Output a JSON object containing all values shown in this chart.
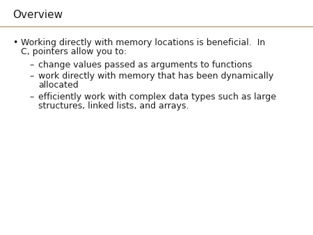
{
  "title": "Overview",
  "title_fontsize": 11,
  "title_color": "#1a1a1a",
  "title_font": "DejaVu Sans",
  "separator_color": "#B8966E",
  "bg_color": "#ffffff",
  "text_color": "#1a1a1a",
  "bullet_main_line1": "Working directly with memory locations is beneficial.  In",
  "bullet_main_line2": "C, pointers allow you to:",
  "sub_bullets": [
    "change values passed as arguments to functions",
    "work directly with memory that has been dynamically\nallocated",
    "efficiently work with complex data types such as large\nstructures, linked lists, and arrays."
  ],
  "body_fontsize": 9.0
}
